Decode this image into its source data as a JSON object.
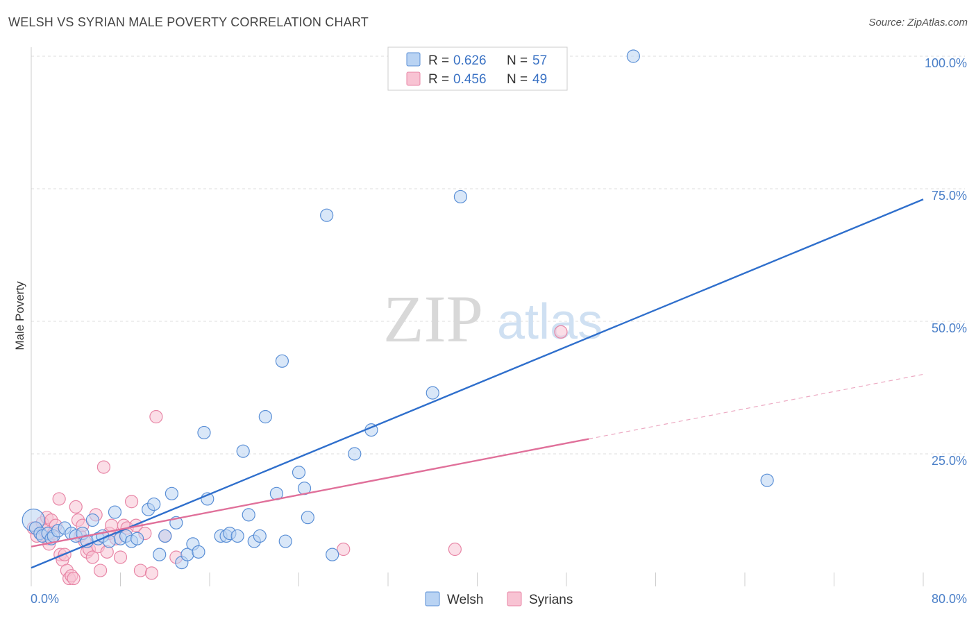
{
  "header": {
    "title": "WELSH VS SYRIAN MALE POVERTY CORRELATION CHART",
    "source": "Source: ZipAtlas.com"
  },
  "watermark": {
    "zip": "ZIP",
    "atlas": "atlas"
  },
  "legend": {
    "r_label": "R =",
    "n_label": "N =",
    "items": [
      {
        "r": "0.626",
        "n": "57"
      },
      {
        "r": "0.456",
        "n": "49"
      }
    ]
  },
  "colors": {
    "welsh_fill": "#b9d3f3",
    "welsh_stroke": "#5a8fd6",
    "welsh_line": "#2f6fcc",
    "syrians_fill": "#f8c3d3",
    "syrians_stroke": "#e886a6",
    "syrians_line": "#e0709a",
    "grid": "#dddddd",
    "tick_label": "#4a7fc8"
  },
  "chart_data": {
    "type": "scatter",
    "title": "WELSH VS SYRIAN MALE POVERTY CORRELATION CHART",
    "xlabel": "",
    "ylabel": "Male Poverty",
    "xlim": [
      0,
      80
    ],
    "ylim": [
      0,
      100
    ],
    "x_tick_labels": [
      "0.0%",
      "80.0%"
    ],
    "y_ticks": [
      25,
      50,
      75,
      100
    ],
    "y_tick_labels": [
      "25.0%",
      "50.0%",
      "75.0%",
      "100.0%"
    ],
    "grid": true,
    "legend_position": "top-center",
    "series": [
      {
        "name": "Welsh",
        "r": 0.626,
        "n": 57,
        "trend": {
          "x0": 0,
          "y0": 3.5,
          "x1": 80,
          "y1": 73,
          "dashed_from": null
        },
        "points": [
          [
            0.2,
            12.5
          ],
          [
            0.4,
            11
          ],
          [
            0.8,
            10
          ],
          [
            1.0,
            9.5
          ],
          [
            1.5,
            10
          ],
          [
            1.8,
            9
          ],
          [
            2.0,
            9.5
          ],
          [
            2.4,
            10.5
          ],
          [
            3.0,
            11
          ],
          [
            3.6,
            10
          ],
          [
            4.0,
            9.5
          ],
          [
            4.6,
            10
          ],
          [
            5.0,
            8.5
          ],
          [
            5.5,
            12.5
          ],
          [
            6.0,
            9
          ],
          [
            6.4,
            9.5
          ],
          [
            7.0,
            8.5
          ],
          [
            7.5,
            14
          ],
          [
            8.0,
            9
          ],
          [
            8.5,
            9.5
          ],
          [
            9.0,
            8.5
          ],
          [
            9.5,
            9
          ],
          [
            10.5,
            14.5
          ],
          [
            11.0,
            15.5
          ],
          [
            11.5,
            6
          ],
          [
            12.0,
            9.5
          ],
          [
            12.6,
            17.5
          ],
          [
            13.0,
            12
          ],
          [
            13.5,
            4.5
          ],
          [
            14.0,
            6
          ],
          [
            14.5,
            8
          ],
          [
            15.0,
            6.5
          ],
          [
            15.5,
            29
          ],
          [
            15.8,
            16.5
          ],
          [
            17.0,
            9.5
          ],
          [
            17.5,
            9.5
          ],
          [
            17.8,
            10
          ],
          [
            18.5,
            9.5
          ],
          [
            19.0,
            25.5
          ],
          [
            19.5,
            13.5
          ],
          [
            20.0,
            8.5
          ],
          [
            20.5,
            9.5
          ],
          [
            21.0,
            32
          ],
          [
            22.0,
            17.5
          ],
          [
            22.5,
            42.5
          ],
          [
            22.8,
            8.5
          ],
          [
            24.0,
            21.5
          ],
          [
            24.5,
            18.5
          ],
          [
            24.8,
            13
          ],
          [
            26.5,
            70
          ],
          [
            27.0,
            6
          ],
          [
            29.0,
            25
          ],
          [
            30.5,
            29.5
          ],
          [
            36.0,
            36.5
          ],
          [
            38.5,
            73.5
          ],
          [
            54.0,
            100
          ],
          [
            66.0,
            20
          ]
        ]
      },
      {
        "name": "Syrians",
        "r": 0.456,
        "n": 49,
        "trend": {
          "x0": 0,
          "y0": 7.5,
          "x1": 80,
          "y1": 40,
          "dashed_from": 50
        },
        "points": [
          [
            0.2,
            11
          ],
          [
            0.5,
            9.5
          ],
          [
            0.8,
            10
          ],
          [
            1.0,
            12
          ],
          [
            1.2,
            10.5
          ],
          [
            1.4,
            13
          ],
          [
            1.5,
            9
          ],
          [
            1.6,
            8
          ],
          [
            1.8,
            12.5
          ],
          [
            2.0,
            10
          ],
          [
            2.2,
            11.5
          ],
          [
            2.5,
            16.5
          ],
          [
            2.6,
            6
          ],
          [
            2.8,
            5
          ],
          [
            3.0,
            6
          ],
          [
            3.2,
            3
          ],
          [
            3.4,
            1.5
          ],
          [
            3.6,
            2
          ],
          [
            3.8,
            1.5
          ],
          [
            4.0,
            15
          ],
          [
            4.2,
            12.5
          ],
          [
            4.4,
            9.5
          ],
          [
            4.6,
            11.5
          ],
          [
            4.8,
            8.5
          ],
          [
            5.0,
            6.5
          ],
          [
            5.2,
            7
          ],
          [
            5.5,
            5.5
          ],
          [
            5.8,
            13.5
          ],
          [
            6.0,
            7.5
          ],
          [
            6.2,
            3
          ],
          [
            6.5,
            22.5
          ],
          [
            6.8,
            6.5
          ],
          [
            7.0,
            10
          ],
          [
            7.2,
            11.5
          ],
          [
            7.6,
            9
          ],
          [
            8.0,
            5.5
          ],
          [
            8.3,
            11.5
          ],
          [
            8.6,
            11
          ],
          [
            9.0,
            16
          ],
          [
            9.4,
            11.5
          ],
          [
            9.8,
            3
          ],
          [
            10.2,
            10
          ],
          [
            10.8,
            2.5
          ],
          [
            11.2,
            32
          ],
          [
            12.0,
            9.5
          ],
          [
            13.0,
            5.5
          ],
          [
            28.0,
            7
          ],
          [
            38.0,
            7
          ],
          [
            47.5,
            48
          ]
        ]
      }
    ]
  },
  "bottom_legend": [
    "Welsh",
    "Syrians"
  ]
}
